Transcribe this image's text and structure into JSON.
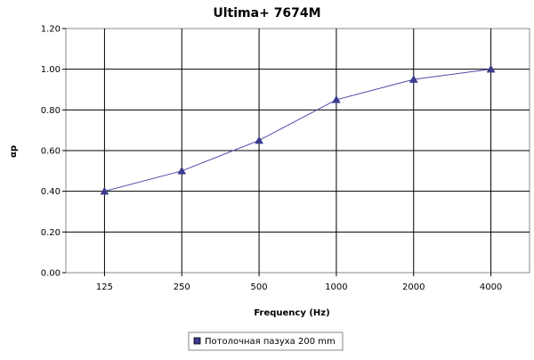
{
  "chart_data": {
    "type": "line",
    "title": "Ultima+ 7674M",
    "xlabel": "Frequency (Hz)",
    "ylabel": "αp",
    "categories": [
      "125",
      "250",
      "500",
      "1000",
      "2000",
      "4000"
    ],
    "series": [
      {
        "name": "Потолочная пазуха 200 mm",
        "values": [
          0.4,
          0.5,
          0.65,
          0.85,
          0.95,
          1.0
        ]
      }
    ],
    "ylim": [
      0,
      1.2
    ],
    "yticks": [
      "0.00",
      "0.20",
      "0.40",
      "0.60",
      "0.80",
      "1.00",
      "1.20"
    ],
    "grid": true,
    "legend_position": "bottom-center",
    "colors": {
      "series": "#4b4ba8",
      "grid": "#000000",
      "marker": "#3b3b8f"
    }
  }
}
